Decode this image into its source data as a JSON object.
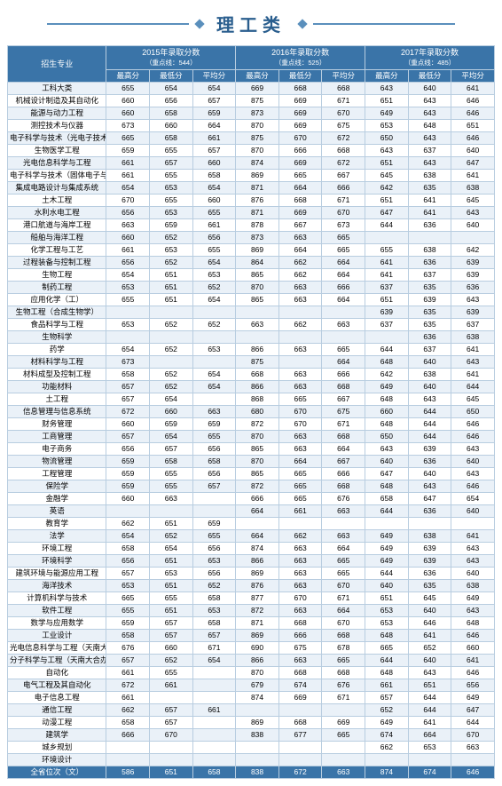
{
  "title": "理工类",
  "header": {
    "major_col": "招生专业",
    "years": [
      {
        "label": "2015年录取分数",
        "cutoff": "（重点线：544）"
      },
      {
        "label": "2016年录取分数",
        "cutoff": "（重点线：525）"
      },
      {
        "label": "2017年录取分数",
        "cutoff": "（重点线：485）"
      }
    ],
    "sub": [
      "最高分",
      "最低分",
      "平均分"
    ]
  },
  "rows": [
    {
      "m": "工科大类",
      "v": [
        "655",
        "654",
        "654",
        "669",
        "668",
        "668",
        "643",
        "640",
        "641"
      ]
    },
    {
      "m": "机械设计制造及其自动化",
      "v": [
        "660",
        "656",
        "657",
        "875",
        "669",
        "671",
        "651",
        "643",
        "646"
      ]
    },
    {
      "m": "能源与动力工程",
      "v": [
        "660",
        "658",
        "659",
        "873",
        "669",
        "670",
        "649",
        "643",
        "646"
      ]
    },
    {
      "m": "测控技术与仪器",
      "v": [
        "673",
        "660",
        "664",
        "870",
        "669",
        "675",
        "653",
        "648",
        "651"
      ]
    },
    {
      "m": "电子科学与技术（光电子技术）",
      "v": [
        "665",
        "658",
        "661",
        "875",
        "670",
        "672",
        "650",
        "643",
        "646"
      ]
    },
    {
      "m": "生物医学工程",
      "v": [
        "659",
        "655",
        "657",
        "870",
        "666",
        "668",
        "643",
        "637",
        "640"
      ]
    },
    {
      "m": "光电信息科学与工程",
      "v": [
        "661",
        "657",
        "660",
        "874",
        "669",
        "672",
        "651",
        "643",
        "647"
      ]
    },
    {
      "m": "电子科学与技术（固体电子与微电子）",
      "v": [
        "661",
        "655",
        "658",
        "869",
        "665",
        "667",
        "645",
        "638",
        "641"
      ]
    },
    {
      "m": "集成电路设计与集成系统",
      "v": [
        "654",
        "653",
        "654",
        "871",
        "664",
        "666",
        "642",
        "635",
        "638"
      ]
    },
    {
      "m": "土木工程",
      "v": [
        "670",
        "655",
        "660",
        "876",
        "668",
        "671",
        "651",
        "641",
        "645"
      ]
    },
    {
      "m": "水利水电工程",
      "v": [
        "656",
        "653",
        "655",
        "871",
        "669",
        "670",
        "647",
        "641",
        "643"
      ]
    },
    {
      "m": "港口航道与海岸工程",
      "v": [
        "663",
        "659",
        "661",
        "878",
        "667",
        "673",
        "644",
        "636",
        "640"
      ]
    },
    {
      "m": "船舶与海洋工程",
      "v": [
        "660",
        "652",
        "656",
        "873",
        "663",
        "665",
        "",
        "",
        ""
      ]
    },
    {
      "m": "化学工程与工艺",
      "v": [
        "661",
        "653",
        "655",
        "869",
        "664",
        "665",
        "655",
        "638",
        "642"
      ]
    },
    {
      "m": "过程装备与控制工程",
      "v": [
        "656",
        "652",
        "654",
        "864",
        "662",
        "664",
        "641",
        "636",
        "639"
      ]
    },
    {
      "m": "生物工程",
      "v": [
        "654",
        "651",
        "653",
        "865",
        "662",
        "664",
        "641",
        "637",
        "639"
      ]
    },
    {
      "m": "制药工程",
      "v": [
        "653",
        "651",
        "652",
        "870",
        "663",
        "666",
        "637",
        "635",
        "636"
      ]
    },
    {
      "m": "应用化学（工）",
      "v": [
        "655",
        "651",
        "654",
        "865",
        "663",
        "664",
        "651",
        "639",
        "643"
      ]
    },
    {
      "m": "生物工程（合成生物学）",
      "v": [
        "",
        "",
        "",
        "",
        "",
        "",
        "639",
        "635",
        "639"
      ]
    },
    {
      "m": "食品科学与工程",
      "v": [
        "653",
        "652",
        "652",
        "663",
        "662",
        "663",
        "637",
        "635",
        "637"
      ]
    },
    {
      "m": "生物科学",
      "v": [
        "",
        "",
        "",
        "",
        "",
        "",
        "",
        "636",
        "638"
      ]
    },
    {
      "m": "药学",
      "v": [
        "654",
        "652",
        "653",
        "866",
        "663",
        "665",
        "644",
        "637",
        "641"
      ]
    },
    {
      "m": "材料科学与工程",
      "v": [
        "673",
        "",
        "",
        "875",
        "",
        "664",
        "648",
        "640",
        "643"
      ]
    },
    {
      "m": "材料成型及控制工程",
      "v": [
        "658",
        "652",
        "654",
        "668",
        "663",
        "666",
        "642",
        "638",
        "641"
      ]
    },
    {
      "m": "功能材料",
      "v": [
        "657",
        "652",
        "654",
        "866",
        "663",
        "668",
        "649",
        "640",
        "644"
      ]
    },
    {
      "m": "土工程",
      "v": [
        "657",
        "654",
        "",
        "868",
        "665",
        "667",
        "648",
        "643",
        "645"
      ]
    },
    {
      "m": "信息管理与信息系统",
      "v": [
        "672",
        "660",
        "663",
        "680",
        "670",
        "675",
        "660",
        "644",
        "650"
      ]
    },
    {
      "m": "财务管理",
      "v": [
        "660",
        "659",
        "659",
        "872",
        "670",
        "671",
        "648",
        "644",
        "646"
      ]
    },
    {
      "m": "工商管理",
      "v": [
        "657",
        "654",
        "655",
        "870",
        "663",
        "668",
        "650",
        "644",
        "646"
      ]
    },
    {
      "m": "电子商务",
      "v": [
        "656",
        "657",
        "656",
        "865",
        "663",
        "664",
        "643",
        "639",
        "643"
      ]
    },
    {
      "m": "物流管理",
      "v": [
        "659",
        "658",
        "658",
        "870",
        "664",
        "667",
        "640",
        "636",
        "640"
      ]
    },
    {
      "m": "工程管理",
      "v": [
        "659",
        "655",
        "656",
        "865",
        "665",
        "666",
        "647",
        "640",
        "643"
      ]
    },
    {
      "m": "保险学",
      "v": [
        "659",
        "655",
        "657",
        "872",
        "665",
        "668",
        "648",
        "643",
        "646"
      ]
    },
    {
      "m": "金融学",
      "v": [
        "660",
        "663",
        "",
        "666",
        "665",
        "676",
        "658",
        "647",
        "654"
      ]
    },
    {
      "m": "英语",
      "v": [
        "",
        "",
        "",
        "664",
        "661",
        "663",
        "644",
        "636",
        "640"
      ]
    },
    {
      "m": "教育学",
      "v": [
        "662",
        "651",
        "659",
        "",
        "",
        "",
        "",
        "",
        ""
      ]
    },
    {
      "m": "法学",
      "v": [
        "654",
        "652",
        "655",
        "664",
        "662",
        "663",
        "649",
        "638",
        "641"
      ]
    },
    {
      "m": "环境工程",
      "v": [
        "658",
        "654",
        "656",
        "874",
        "663",
        "664",
        "649",
        "639",
        "643"
      ]
    },
    {
      "m": "环境科学",
      "v": [
        "656",
        "651",
        "653",
        "866",
        "663",
        "665",
        "649",
        "639",
        "643"
      ]
    },
    {
      "m": "建筑环境与能源应用工程",
      "v": [
        "657",
        "653",
        "656",
        "869",
        "663",
        "665",
        "644",
        "636",
        "640"
      ]
    },
    {
      "m": "海洋技术",
      "v": [
        "653",
        "651",
        "652",
        "876",
        "663",
        "670",
        "640",
        "635",
        "638"
      ]
    },
    {
      "m": "计算机科学与技术",
      "v": [
        "665",
        "655",
        "658",
        "877",
        "670",
        "671",
        "651",
        "645",
        "649"
      ]
    },
    {
      "m": "软件工程",
      "v": [
        "655",
        "651",
        "653",
        "872",
        "663",
        "664",
        "653",
        "640",
        "643"
      ]
    },
    {
      "m": "数学与应用数学",
      "v": [
        "659",
        "657",
        "658",
        "871",
        "668",
        "670",
        "653",
        "646",
        "648"
      ]
    },
    {
      "m": "工业设计",
      "v": [
        "658",
        "657",
        "657",
        "869",
        "666",
        "668",
        "648",
        "641",
        "646"
      ]
    },
    {
      "m": "光电信息科学与工程（天南大合办）",
      "v": [
        "676",
        "660",
        "671",
        "690",
        "675",
        "678",
        "665",
        "652",
        "660"
      ]
    },
    {
      "m": "分子科学与工程（天南大合办）",
      "v": [
        "657",
        "652",
        "654",
        "866",
        "663",
        "665",
        "644",
        "640",
        "641"
      ]
    },
    {
      "m": "自动化",
      "v": [
        "661",
        "655",
        "",
        "870",
        "668",
        "668",
        "648",
        "643",
        "646"
      ]
    },
    {
      "m": "电气工程及其自动化",
      "v": [
        "672",
        "661",
        "",
        "679",
        "674",
        "676",
        "661",
        "651",
        "656"
      ]
    },
    {
      "m": "电子信息工程",
      "v": [
        "661",
        "",
        "",
        "874",
        "669",
        "671",
        "657",
        "644",
        "649"
      ]
    },
    {
      "m": "通信工程",
      "v": [
        "662",
        "657",
        "661",
        "",
        "",
        "",
        "652",
        "644",
        "647"
      ]
    },
    {
      "m": "动漫工程",
      "v": [
        "658",
        "657",
        "",
        "869",
        "668",
        "669",
        "649",
        "641",
        "644"
      ]
    },
    {
      "m": "建筑学",
      "v": [
        "666",
        "670",
        "",
        "838",
        "677",
        "665",
        "674",
        "664",
        "670"
      ]
    },
    {
      "m": "城乡规划",
      "v": [
        "",
        "",
        "",
        "",
        "",
        "",
        "662",
        "653",
        "663"
      ]
    },
    {
      "m": "环境设计",
      "v": [
        "",
        "",
        "",
        "",
        "",
        "",
        "",
        "",
        ""
      ]
    }
  ],
  "footer": {
    "m": "全省位次（文）",
    "v": [
      "586",
      "651",
      "658",
      "838",
      "672",
      "663",
      "874",
      "674",
      "646"
    ]
  }
}
